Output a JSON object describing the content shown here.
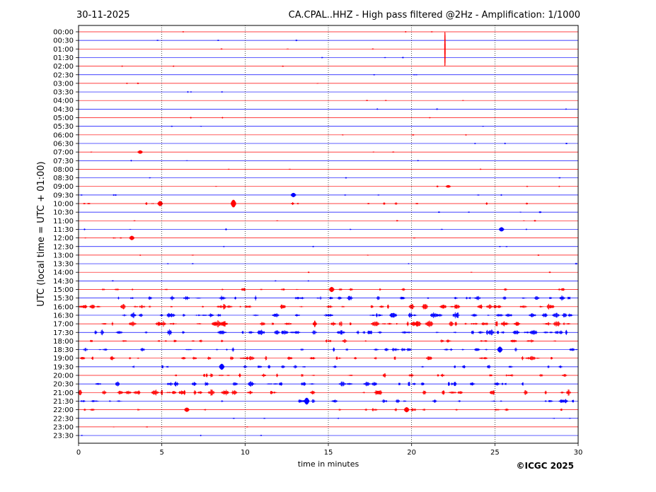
{
  "header": {
    "date": "30-11-2025",
    "title": "CA.CPAL..HHZ - High pass filtered @2Hz - Amplification: 1/1000"
  },
  "copyright": "©ICGC 2025",
  "chart_data": {
    "type": "line",
    "title": "CA.CPAL..HHZ - High pass filtered @2Hz - Amplification: 1/1000",
    "xlabel": "time in minutes",
    "ylabel": "UTC (local time = UTC + 01:00)",
    "xlim": [
      0,
      30
    ],
    "x_ticks": [
      0,
      5,
      10,
      15,
      20,
      25,
      30
    ],
    "x_tick_labels": [
      "0",
      "5",
      "10",
      "15",
      "20",
      "25",
      "30"
    ],
    "grid": "vertical dotted lines at 5-minute intervals",
    "trace_colors": [
      "#ff0000",
      "#0000ff"
    ],
    "rows": [
      "00:00",
      "00:30",
      "01:00",
      "01:30",
      "02:00",
      "02:30",
      "03:00",
      "03:30",
      "04:00",
      "04:30",
      "05:00",
      "05:30",
      "06:00",
      "06:30",
      "07:00",
      "07:30",
      "08:00",
      "08:30",
      "09:00",
      "09:30",
      "10:00",
      "10:30",
      "11:00",
      "11:30",
      "12:00",
      "12:30",
      "13:00",
      "13:30",
      "14:00",
      "14:30",
      "15:00",
      "15:30",
      "16:00",
      "16:30",
      "17:00",
      "17:30",
      "18:00",
      "18:30",
      "19:00",
      "19:30",
      "20:00",
      "20:30",
      "21:00",
      "21:30",
      "22:00",
      "22:30",
      "23:00",
      "23:30"
    ],
    "activity": [
      0.05,
      0.05,
      0.05,
      0.05,
      0.05,
      0.05,
      0.05,
      0.05,
      0.05,
      0.05,
      0.05,
      0.05,
      0.05,
      0.05,
      0.06,
      0.05,
      0.05,
      0.05,
      0.08,
      0.12,
      0.2,
      0.08,
      0.08,
      0.1,
      0.08,
      0.06,
      0.06,
      0.06,
      0.05,
      0.05,
      0.3,
      0.55,
      0.7,
      0.7,
      0.75,
      0.7,
      0.4,
      0.45,
      0.55,
      0.35,
      0.4,
      0.6,
      0.7,
      0.45,
      0.3,
      0.08,
      0.05,
      0.05
    ],
    "events": [
      {
        "row": "01:00",
        "minute": 22.0,
        "amplitude": 4
      },
      {
        "row": "07:00",
        "minute": 3.7,
        "amplitude": 0.4
      },
      {
        "row": "09:00",
        "minute": 22.2,
        "amplitude": 0.3
      },
      {
        "row": "09:30",
        "minute": 12.9,
        "amplitude": 0.5
      },
      {
        "row": "10:00",
        "minute": 4.9,
        "amplitude": 0.6
      },
      {
        "row": "10:00",
        "minute": 9.3,
        "amplitude": 0.9
      },
      {
        "row": "11:30",
        "minute": 25.4,
        "amplitude": 0.5
      },
      {
        "row": "12:00",
        "minute": 3.2,
        "amplitude": 0.5
      },
      {
        "row": "15:00",
        "minute": 15.2,
        "amplitude": 0.6
      },
      {
        "row": "18:30",
        "minute": 25.3,
        "amplitude": 0.7
      },
      {
        "row": "19:30",
        "minute": 8.6,
        "amplitude": 0.7
      },
      {
        "row": "21:30",
        "minute": 13.7,
        "amplitude": 0.8
      },
      {
        "row": "22:00",
        "minute": 19.7,
        "amplitude": 0.6
      },
      {
        "row": "22:00",
        "minute": 6.5,
        "amplitude": 0.5
      }
    ]
  }
}
